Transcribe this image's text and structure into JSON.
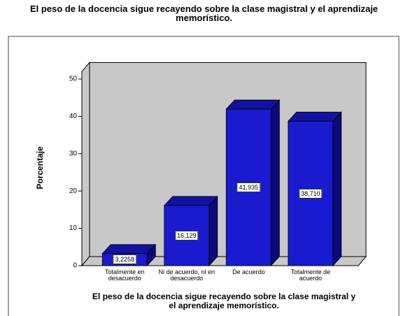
{
  "chart_data": {
    "type": "bar",
    "title": "El peso de la docencia sigue recayendo sobre la clase magistral y el aprendizaje memorístico.",
    "x_label": "El peso de la docencia sigue recayendo sobre la clase magistral y el aprendizaje memorístico.",
    "y_label": "Porcentaje",
    "categories": [
      "Totalmente en desacuerdo",
      "Ni de acuerdo, ni en desacuerdo",
      "De acuerdo",
      "Totalmente de acuerdo"
    ],
    "values": [
      3.2258,
      16.129,
      41.935,
      38.71
    ],
    "value_labels": [
      "3,2258",
      "16,129",
      "41,935",
      "38,710"
    ],
    "color": "#1a1ad0",
    "ylim": [
      0,
      52
    ],
    "yticks": [
      0,
      10,
      20,
      30,
      40,
      50
    ],
    "grid": false
  }
}
